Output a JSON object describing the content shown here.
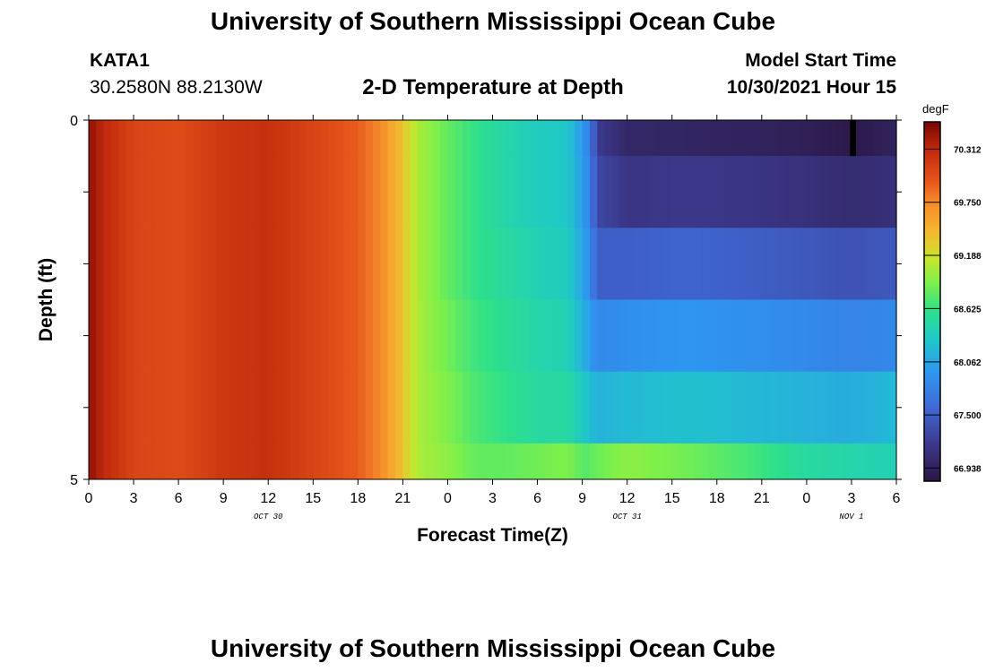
{
  "page": {
    "title_top": "University of Southern Mississippi Ocean Cube",
    "title_bottom": "University of Southern Mississippi Ocean Cube",
    "station_id": "KATA1",
    "coordinates": "30.2580N  88.2130W",
    "model_start_label": "Model Start Time",
    "model_start_value": "10/30/2021 Hour 15"
  },
  "chart_data": {
    "type": "heatmap",
    "title": "2-D Temperature at Depth",
    "xlabel": "Forecast Time(Z)",
    "ylabel": "Depth (ft)",
    "x_range_hours": [
      0,
      54
    ],
    "depth_range_ft": [
      0,
      5
    ],
    "depth_layers_ft": [
      0,
      0.5,
      1.5,
      2.5,
      3.5,
      4.5,
      5
    ],
    "x_ticks": [
      {
        "hours": 0,
        "label": "0"
      },
      {
        "hours": 3,
        "label": "3"
      },
      {
        "hours": 6,
        "label": "6"
      },
      {
        "hours": 9,
        "label": "9"
      },
      {
        "hours": 12,
        "label": "12"
      },
      {
        "hours": 15,
        "label": "15"
      },
      {
        "hours": 18,
        "label": "18"
      },
      {
        "hours": 21,
        "label": "21"
      },
      {
        "hours": 24,
        "label": "0"
      },
      {
        "hours": 27,
        "label": "3"
      },
      {
        "hours": 30,
        "label": "6"
      },
      {
        "hours": 33,
        "label": "9"
      },
      {
        "hours": 36,
        "label": "12"
      },
      {
        "hours": 39,
        "label": "15"
      },
      {
        "hours": 42,
        "label": "18"
      },
      {
        "hours": 45,
        "label": "21"
      },
      {
        "hours": 48,
        "label": "0"
      },
      {
        "hours": 51,
        "label": "3"
      },
      {
        "hours": 54,
        "label": "6"
      }
    ],
    "date_labels": [
      {
        "hours": 12,
        "label": "OCT 30"
      },
      {
        "hours": 36,
        "label": "OCT 31"
      },
      {
        "hours": 51,
        "label": "NOV 1"
      }
    ],
    "y_ticks": [
      {
        "depth": 0,
        "label": "0"
      },
      {
        "depth": 1,
        "label": ""
      },
      {
        "depth": 2,
        "label": ""
      },
      {
        "depth": 3,
        "label": ""
      },
      {
        "depth": 4,
        "label": ""
      },
      {
        "depth": 5,
        "label": "5"
      }
    ],
    "colorbar": {
      "unit": "degF",
      "min": 66.8,
      "max": 70.6,
      "tick_values": [
        70.312,
        69.75,
        69.188,
        68.625,
        68.062,
        67.5,
        66.938
      ],
      "tick_labels": [
        "70.312",
        "69.750",
        "69.188",
        "68.625",
        "68.062",
        "67.500",
        "66.938"
      ],
      "stops": [
        {
          "value": 66.8,
          "color": "#2a1540"
        },
        {
          "value": 67.2,
          "color": "#3c3a8e"
        },
        {
          "value": 67.6,
          "color": "#3f6bd8"
        },
        {
          "value": 67.95,
          "color": "#2e96f0"
        },
        {
          "value": 68.3,
          "color": "#1fc8c8"
        },
        {
          "value": 68.6,
          "color": "#2de08c"
        },
        {
          "value": 68.9,
          "color": "#7ef04a"
        },
        {
          "value": 69.15,
          "color": "#c8e62e"
        },
        {
          "value": 69.45,
          "color": "#f5b530"
        },
        {
          "value": 69.75,
          "color": "#f58a2a"
        },
        {
          "value": 70.0,
          "color": "#e5521a"
        },
        {
          "value": 70.3,
          "color": "#c0290c"
        },
        {
          "value": 70.6,
          "color": "#7a0604"
        }
      ]
    },
    "profile_keyframes": {
      "hours": [
        0,
        1,
        3,
        6,
        9,
        12,
        15,
        18,
        19.5,
        21,
        22,
        24,
        26,
        28,
        30,
        32,
        33.2,
        33.6,
        34.2,
        36,
        40,
        44,
        48,
        51,
        54
      ],
      "layers": [
        {
          "depth_top": 0,
          "depth_bottom": 0.5,
          "values": [
            70.5,
            70.3,
            70.1,
            70.05,
            70.2,
            70.25,
            70.1,
            69.95,
            69.75,
            69.35,
            69.05,
            68.8,
            68.6,
            68.45,
            68.35,
            68.3,
            67.9,
            67.6,
            67.2,
            67.0,
            66.98,
            66.95,
            66.92,
            66.85,
            66.95
          ]
        },
        {
          "depth_top": 0.5,
          "depth_bottom": 1.5,
          "values": [
            70.5,
            70.3,
            70.1,
            70.05,
            70.2,
            70.25,
            70.1,
            69.95,
            69.75,
            69.35,
            69.05,
            68.8,
            68.6,
            68.45,
            68.35,
            68.3,
            67.95,
            67.65,
            67.3,
            67.15,
            67.18,
            67.15,
            67.1,
            67.05,
            67.1
          ]
        },
        {
          "depth_top": 1.5,
          "depth_bottom": 2.5,
          "values": [
            70.5,
            70.3,
            70.1,
            70.05,
            70.2,
            70.25,
            70.1,
            69.95,
            69.75,
            69.35,
            69.05,
            68.8,
            68.6,
            68.5,
            68.4,
            68.35,
            68.0,
            67.75,
            67.5,
            67.5,
            67.55,
            67.5,
            67.45,
            67.4,
            67.45
          ]
        },
        {
          "depth_top": 2.5,
          "depth_bottom": 3.5,
          "values": [
            70.5,
            70.3,
            70.1,
            70.05,
            70.2,
            70.25,
            70.1,
            69.95,
            69.75,
            69.35,
            69.05,
            68.85,
            68.65,
            68.55,
            68.45,
            68.4,
            68.1,
            67.95,
            67.85,
            67.9,
            67.95,
            67.9,
            67.85,
            67.8,
            67.85
          ]
        },
        {
          "depth_top": 3.5,
          "depth_bottom": 4.5,
          "values": [
            70.5,
            70.3,
            70.1,
            70.05,
            70.2,
            70.25,
            70.1,
            69.95,
            69.75,
            69.35,
            69.05,
            68.9,
            68.7,
            68.6,
            68.5,
            68.5,
            68.3,
            68.2,
            68.15,
            68.2,
            68.25,
            68.2,
            68.15,
            68.1,
            68.2
          ]
        },
        {
          "depth_top": 4.5,
          "depth_bottom": 5,
          "values": [
            70.5,
            70.3,
            70.1,
            70.05,
            70.2,
            70.25,
            70.1,
            69.95,
            69.75,
            69.35,
            69.05,
            68.95,
            68.8,
            68.8,
            68.85,
            68.9,
            68.75,
            68.8,
            68.85,
            68.95,
            68.85,
            68.7,
            68.5,
            68.45,
            68.4
          ]
        }
      ]
    },
    "missing_data": [
      {
        "hours_start": 50.9,
        "hours_end": 51.3,
        "depth_top": 0,
        "depth_bottom": 0.5,
        "color": "#000000"
      }
    ]
  }
}
